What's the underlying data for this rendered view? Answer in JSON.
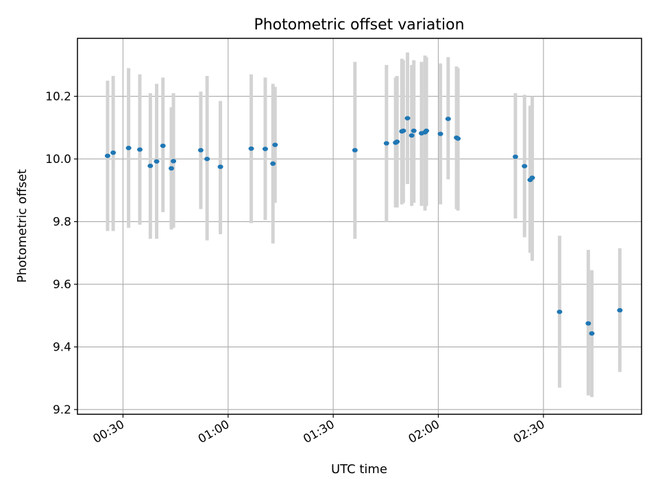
{
  "chart_data": {
    "type": "scatter",
    "title": "Photometric offset variation",
    "xlabel": "UTC time",
    "ylabel": "Photometric offset",
    "x_unit": "time HH:MM (UTC)",
    "xlim": [
      "00:17",
      "02:58"
    ],
    "ylim": [
      9.185,
      10.385
    ],
    "x_ticks": [
      "00:30",
      "01:00",
      "01:30",
      "02:00",
      "02:30"
    ],
    "y_ticks": [
      "9.2",
      "9.4",
      "9.6",
      "9.8",
      "10.0",
      "10.2"
    ],
    "grid": true,
    "legend": "none",
    "colors": {
      "points": "#1f77b4",
      "error_bars": "#d3d3d3",
      "grid": "#b0b0b0"
    },
    "series": [
      {
        "points": [
          {
            "x": "00:25:36",
            "y": 10.01,
            "ylo": 9.77,
            "yhi": 10.25
          },
          {
            "x": "00:27:12",
            "y": 10.02,
            "ylo": 9.77,
            "yhi": 10.265
          },
          {
            "x": "00:31:36",
            "y": 10.035,
            "ylo": 9.78,
            "yhi": 10.29
          },
          {
            "x": "00:34:48",
            "y": 10.03,
            "ylo": 9.79,
            "yhi": 10.27
          },
          {
            "x": "00:37:48",
            "y": 9.978,
            "ylo": 9.745,
            "yhi": 10.21
          },
          {
            "x": "00:39:36",
            "y": 9.992,
            "ylo": 9.745,
            "yhi": 10.24
          },
          {
            "x": "00:41:24",
            "y": 10.042,
            "ylo": 9.83,
            "yhi": 10.26
          },
          {
            "x": "00:43:48",
            "y": 9.97,
            "ylo": 9.775,
            "yhi": 10.165
          },
          {
            "x": "00:44:24",
            "y": 9.993,
            "ylo": 9.78,
            "yhi": 10.21
          },
          {
            "x": "00:52:12",
            "y": 10.028,
            "ylo": 9.84,
            "yhi": 10.215
          },
          {
            "x": "00:54:00",
            "y": 10.0,
            "ylo": 9.74,
            "yhi": 10.265
          },
          {
            "x": "00:57:48",
            "y": 9.975,
            "ylo": 9.76,
            "yhi": 10.185
          },
          {
            "x": "01:06:36",
            "y": 10.033,
            "ylo": 9.795,
            "yhi": 10.27
          },
          {
            "x": "01:10:36",
            "y": 10.032,
            "ylo": 9.805,
            "yhi": 10.26
          },
          {
            "x": "01:12:48",
            "y": 9.985,
            "ylo": 9.73,
            "yhi": 10.24
          },
          {
            "x": "01:13:24",
            "y": 10.045,
            "ylo": 9.86,
            "yhi": 10.23
          },
          {
            "x": "01:36:12",
            "y": 10.028,
            "ylo": 9.745,
            "yhi": 10.31
          },
          {
            "x": "01:45:12",
            "y": 10.05,
            "ylo": 9.8,
            "yhi": 10.3
          },
          {
            "x": "01:47:48",
            "y": 10.052,
            "ylo": 9.845,
            "yhi": 10.26
          },
          {
            "x": "01:48:12",
            "y": 10.055,
            "ylo": 9.845,
            "yhi": 10.265
          },
          {
            "x": "01:49:36",
            "y": 10.088,
            "ylo": 9.855,
            "yhi": 10.32
          },
          {
            "x": "01:50:00",
            "y": 10.09,
            "ylo": 9.86,
            "yhi": 10.315
          },
          {
            "x": "01:51:12",
            "y": 10.13,
            "ylo": 9.92,
            "yhi": 10.34
          },
          {
            "x": "01:52:24",
            "y": 10.075,
            "ylo": 9.85,
            "yhi": 10.3
          },
          {
            "x": "01:53:00",
            "y": 10.09,
            "ylo": 9.86,
            "yhi": 10.315
          },
          {
            "x": "01:55:12",
            "y": 10.082,
            "ylo": 9.85,
            "yhi": 10.31
          },
          {
            "x": "01:56:12",
            "y": 10.085,
            "ylo": 9.835,
            "yhi": 10.33
          },
          {
            "x": "01:56:36",
            "y": 10.09,
            "ylo": 9.85,
            "yhi": 10.325
          },
          {
            "x": "02:00:36",
            "y": 10.08,
            "ylo": 9.855,
            "yhi": 10.305
          },
          {
            "x": "02:02:48",
            "y": 10.128,
            "ylo": 9.935,
            "yhi": 10.325
          },
          {
            "x": "02:05:12",
            "y": 10.068,
            "ylo": 9.84,
            "yhi": 10.295
          },
          {
            "x": "02:05:36",
            "y": 10.065,
            "ylo": 9.835,
            "yhi": 10.29
          },
          {
            "x": "02:22:00",
            "y": 10.007,
            "ylo": 9.81,
            "yhi": 10.21
          },
          {
            "x": "02:24:36",
            "y": 9.977,
            "ylo": 9.75,
            "yhi": 10.205
          },
          {
            "x": "02:26:12",
            "y": 9.933,
            "ylo": 9.7,
            "yhi": 10.17
          },
          {
            "x": "02:26:48",
            "y": 9.94,
            "ylo": 9.675,
            "yhi": 10.2
          },
          {
            "x": "02:34:36",
            "y": 9.512,
            "ylo": 9.27,
            "yhi": 9.755
          },
          {
            "x": "02:42:48",
            "y": 9.475,
            "ylo": 9.245,
            "yhi": 9.71
          },
          {
            "x": "02:43:48",
            "y": 9.443,
            "ylo": 9.24,
            "yhi": 9.645
          },
          {
            "x": "02:51:48",
            "y": 9.517,
            "ylo": 9.32,
            "yhi": 9.715
          }
        ]
      }
    ]
  }
}
